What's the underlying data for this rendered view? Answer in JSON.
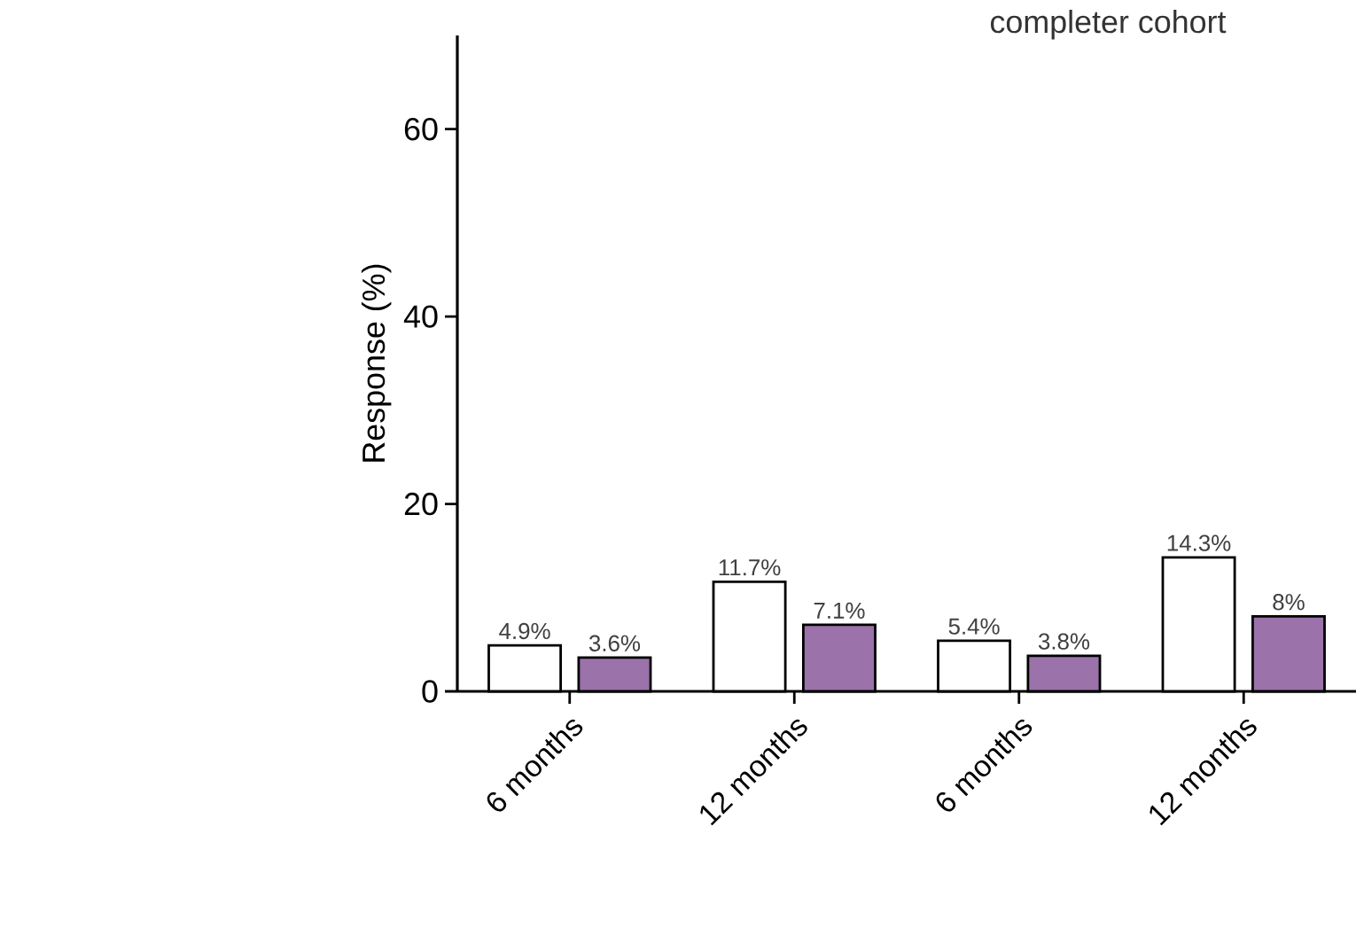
{
  "chart_data": {
    "type": "bar",
    "title": "completer cohort",
    "ylabel": "Response (%)",
    "categories": [
      "6 months",
      "12 months",
      "6 months",
      "12 months"
    ],
    "series": [
      {
        "color": "#ffffff",
        "values": [
          4.9,
          11.7,
          5.4,
          14.3
        ],
        "value_labels": [
          "4.9%",
          "11.7%",
          "5.4%",
          "14.3%"
        ]
      },
      {
        "color": "#9b72aa",
        "values": [
          3.6,
          7.1,
          3.8,
          8
        ],
        "value_labels": [
          "3.6%",
          "7.1%",
          "3.8%",
          "8%"
        ]
      }
    ],
    "ylim": [
      0,
      70
    ],
    "yticks": [
      0,
      20,
      40,
      60
    ],
    "grid": false
  }
}
